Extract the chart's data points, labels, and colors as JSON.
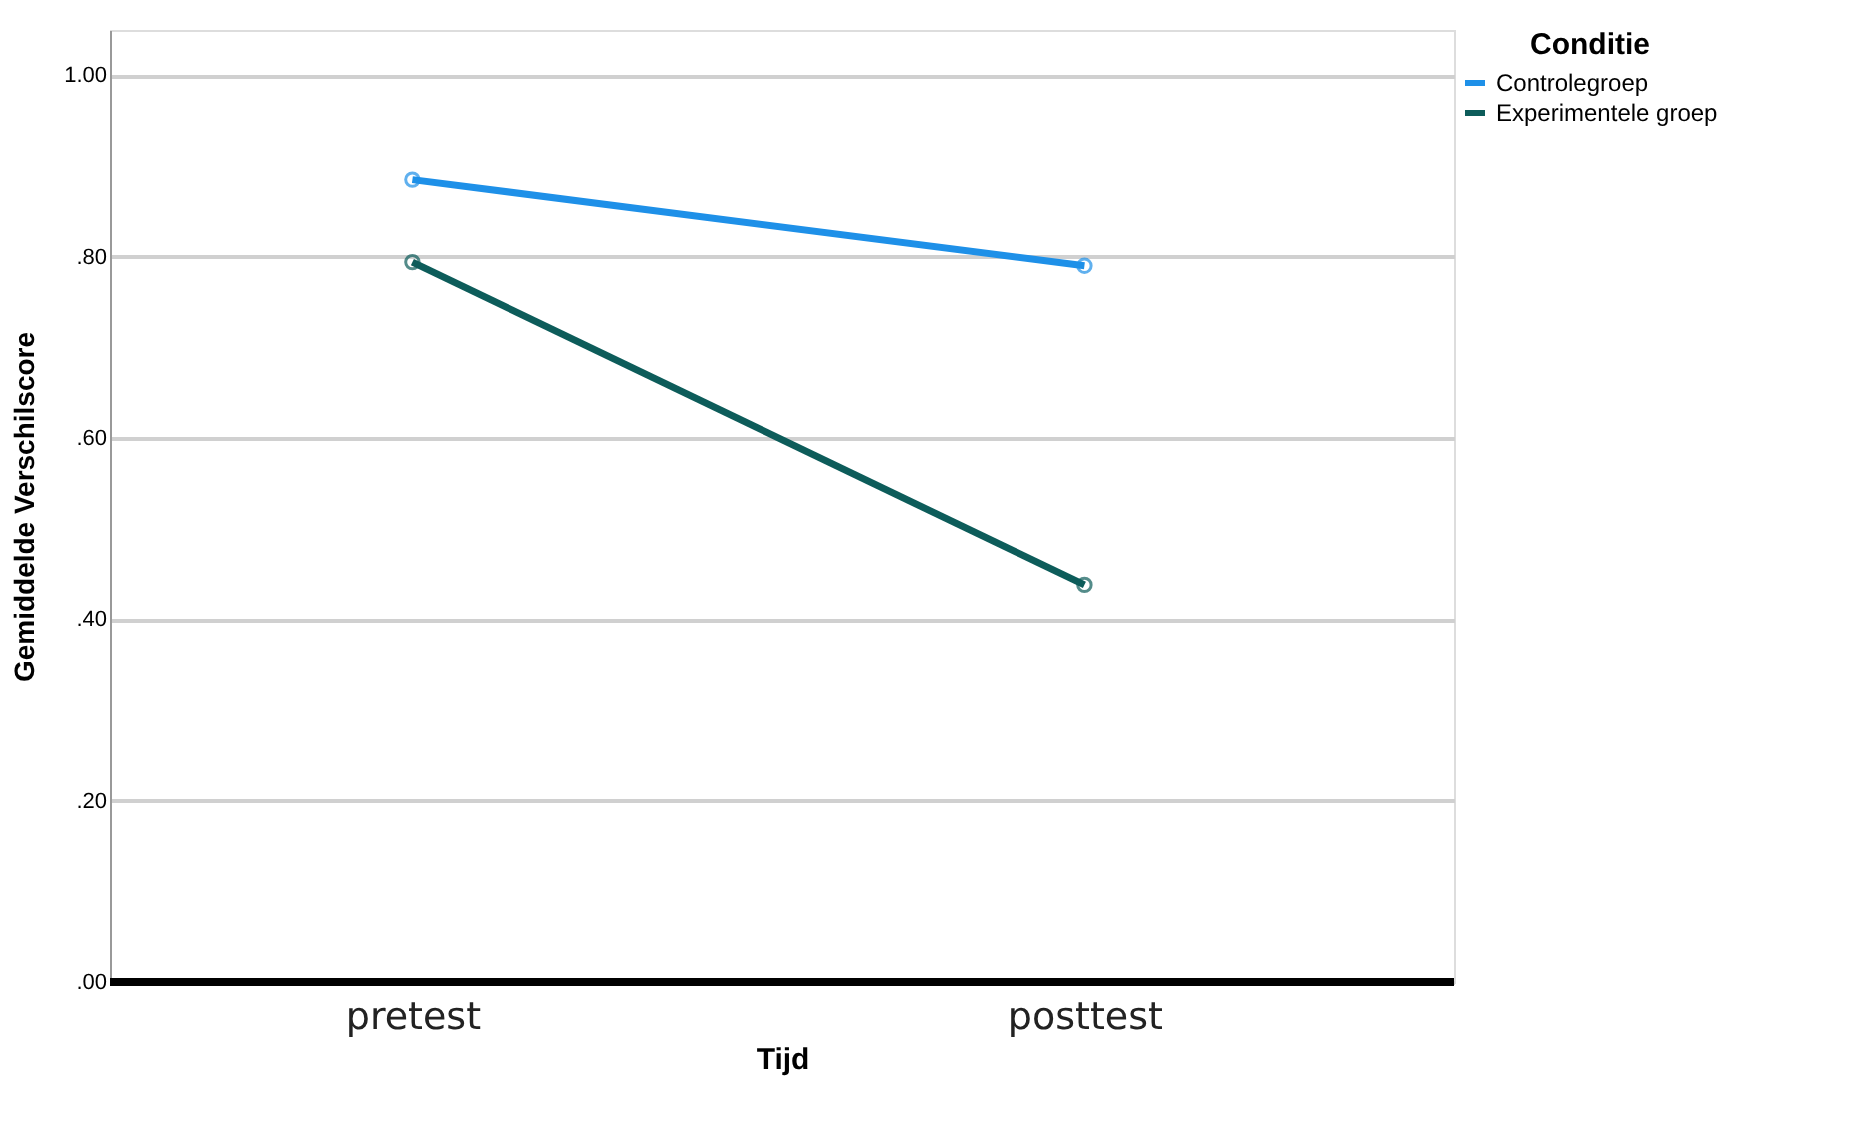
{
  "chart_data": {
    "type": "line",
    "xlabel": "Tijd",
    "ylabel": "Gemiddelde Verschilscore",
    "legend_title": "Conditie",
    "categories": [
      "pretest",
      "posttest"
    ],
    "series": [
      {
        "name": "Controlegroep",
        "color": "#1e90e8",
        "values": [
          0.885,
          0.79
        ]
      },
      {
        "name": "Experimentele groep",
        "color": "#0d5c5a",
        "values": [
          0.794,
          0.438
        ]
      }
    ],
    "ylim": [
      0,
      1.05
    ],
    "yticks": [
      {
        "value": 0,
        "label": ".00"
      },
      {
        "value": 0.2,
        "label": ".20"
      },
      {
        "value": 0.4,
        "label": ".40"
      },
      {
        "value": 0.6,
        "label": ".60"
      },
      {
        "value": 0.8,
        "label": ".80"
      },
      {
        "value": 1.0,
        "label": "1.00"
      }
    ],
    "grid": "y",
    "legend": "top right",
    "marker": "circle",
    "line_style": "solid"
  }
}
